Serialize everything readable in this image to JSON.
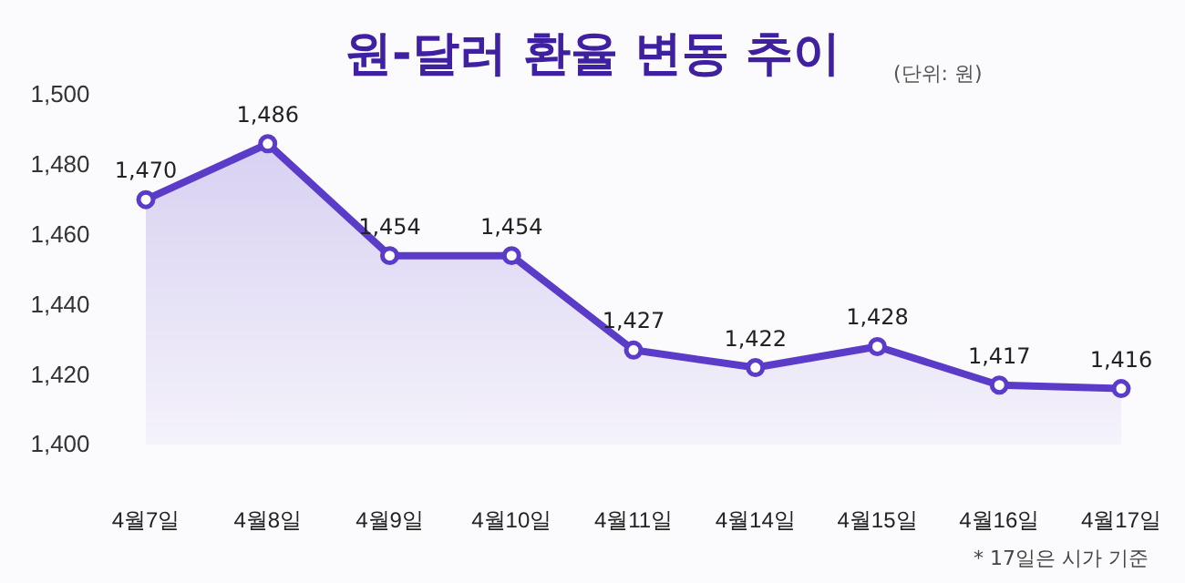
{
  "chart_data": {
    "type": "area",
    "title": "원-달러 환율 변동 추이",
    "subtitle": "(단위: 원)",
    "categories": [
      "4월7일",
      "4월8일",
      "4월9일",
      "4월10일",
      "4월11일",
      "4월14일",
      "4월15일",
      "4월16일",
      "4월17일"
    ],
    "series": [
      {
        "color": "#5a3cc8",
        "values": [
          1470,
          1486,
          1454,
          1454,
          1427,
          1422,
          1428,
          1417,
          1416
        ],
        "value_labels": [
          "1,470",
          "1,486",
          "1,454",
          "1,454",
          "1,427",
          "1,422",
          "1,428",
          "1,417",
          "1,416"
        ]
      }
    ],
    "ylim": [
      1400,
      1500
    ],
    "yticks": [
      {
        "value": 1400,
        "label": "1,400"
      },
      {
        "value": 1420,
        "label": "1,420"
      },
      {
        "value": 1440,
        "label": "1,440"
      },
      {
        "value": 1460,
        "label": "1,460"
      },
      {
        "value": 1480,
        "label": "1,480"
      },
      {
        "value": 1500,
        "label": "1,500"
      }
    ],
    "marker": "circle",
    "line_style": "solid",
    "annotations": [
      "* 17일은 시가 기준"
    ]
  }
}
